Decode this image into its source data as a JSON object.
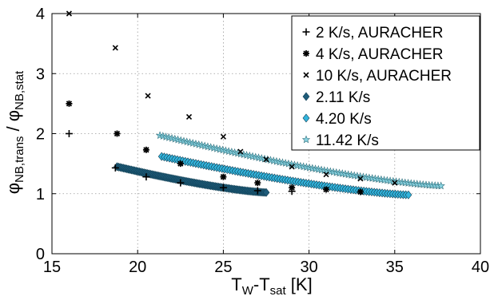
{
  "chart_data": {
    "type": "scatter",
    "xlim": [
      15,
      40
    ],
    "ylim": [
      0,
      4
    ],
    "x_ticks": [
      "15",
      "20",
      "25",
      "30",
      "35",
      "40"
    ],
    "y_ticks": [
      "0",
      "1",
      "2",
      "3",
      "4"
    ],
    "xlabel": {
      "main1": "T",
      "sub1": "W",
      "main2": "-T",
      "sub2": "sat",
      "main3": " [K]"
    },
    "ylabel": {
      "phi1": "φ",
      "sub1": "NB,trans",
      "slash": " / ",
      "phi2": "φ",
      "sub2": "NB,stat"
    },
    "grid": true,
    "legend_position": "top-right",
    "series": [
      {
        "name": "2 K/s, AURACHER",
        "marker": "plus",
        "color": "#000000",
        "points": [
          [
            16.0,
            2.0
          ],
          [
            18.7,
            1.43
          ],
          [
            20.5,
            1.28
          ],
          [
            22.5,
            1.18
          ],
          [
            25.0,
            1.1
          ],
          [
            27.0,
            1.05
          ],
          [
            29.0,
            1.04
          ]
        ]
      },
      {
        "name": "4 K/s, AURACHER",
        "marker": "asterisk",
        "color": "#000000",
        "points": [
          [
            16.0,
            2.5
          ],
          [
            18.8,
            2.0
          ],
          [
            20.5,
            1.73
          ],
          [
            22.5,
            1.5
          ],
          [
            25.0,
            1.28
          ],
          [
            27.0,
            1.18
          ],
          [
            29.0,
            1.1
          ],
          [
            31.0,
            1.07
          ],
          [
            33.0,
            1.03
          ]
        ]
      },
      {
        "name": "10 K/s, AURACHER",
        "marker": "x",
        "color": "#000000",
        "points": [
          [
            16.0,
            4.0
          ],
          [
            18.7,
            3.43
          ],
          [
            20.6,
            2.63
          ],
          [
            23.0,
            2.28
          ],
          [
            25.0,
            1.95
          ],
          [
            26.0,
            1.7
          ],
          [
            27.5,
            1.57
          ],
          [
            29.0,
            1.45
          ],
          [
            31.0,
            1.32
          ],
          [
            33.0,
            1.25
          ],
          [
            35.0,
            1.18
          ]
        ]
      },
      {
        "name": "2.11 K/s",
        "marker": "diamond",
        "color": "#1f5c7a",
        "range": [
          18.8,
          27.5
        ],
        "y_start": 1.45,
        "y_end": 1.02
      },
      {
        "name": "4.20 K/s",
        "marker": "diamond",
        "color": "#33b4dc",
        "range": [
          21.4,
          35.8
        ],
        "y_start": 1.62,
        "y_end": 0.98
      },
      {
        "name": "11.42 K/s",
        "marker": "star",
        "color": "#8ad4e2",
        "range": [
          21.3,
          37.7
        ],
        "y_start": 1.97,
        "y_end": 1.13
      }
    ]
  }
}
